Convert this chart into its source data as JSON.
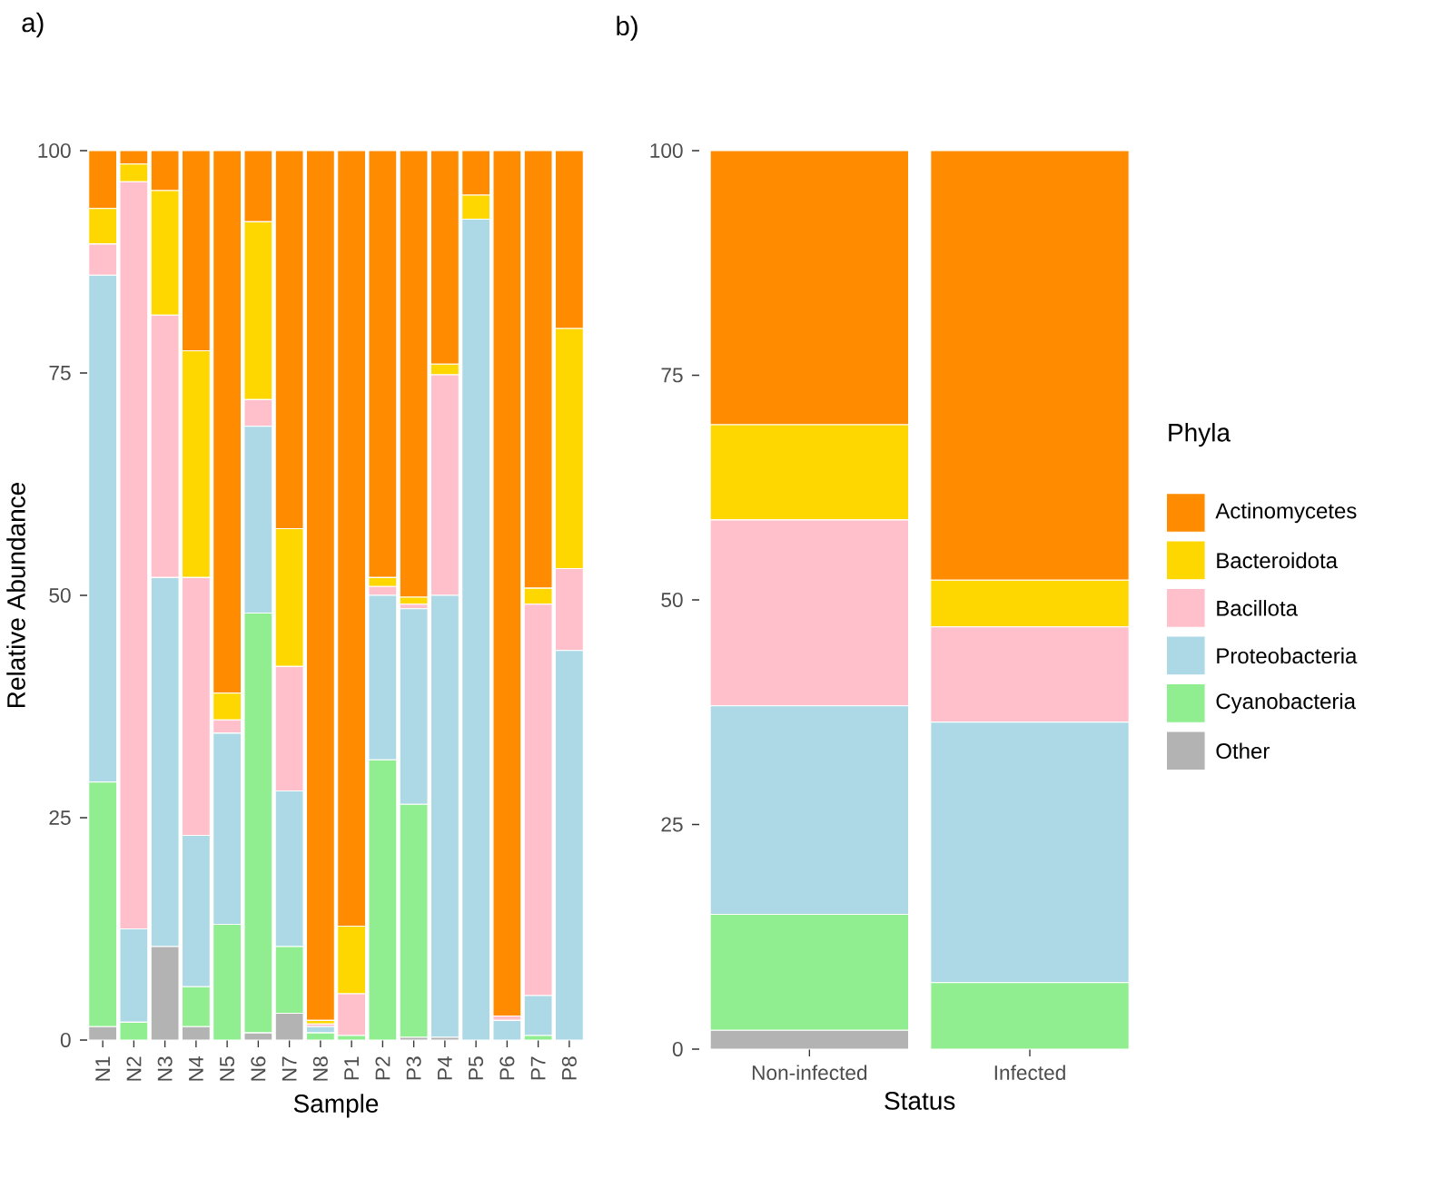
{
  "chart_data": [
    {
      "type": "bar",
      "stacked": true,
      "title": "a)",
      "xlabel": "Sample",
      "ylabel": "Relative Abundance",
      "categories": [
        "N1",
        "N2",
        "N3",
        "N4",
        "N5",
        "N6",
        "N7",
        "N8",
        "P1",
        "P2",
        "P3",
        "P4",
        "P5",
        "P6",
        "P7",
        "P8"
      ],
      "ylim": [
        0,
        100
      ],
      "yticks": [
        0,
        25,
        50,
        75,
        100
      ],
      "legend": false,
      "series": [
        {
          "color": "#b3b3b3",
          "values": [
            1.5,
            0,
            10.5,
            1.5,
            0,
            0.8,
            3,
            0,
            0,
            0,
            0.3,
            0.3,
            0,
            0,
            0,
            0
          ]
        },
        {
          "color": "#90ee90",
          "values": [
            27.5,
            2,
            0,
            4.5,
            13,
            47.2,
            7.5,
            0.8,
            0.5,
            31.5,
            26.2,
            0,
            0,
            0,
            0.5,
            0
          ]
        },
        {
          "color": "#add8e6",
          "values": [
            57,
            10.5,
            41.5,
            17,
            21.5,
            21,
            17.5,
            0.7,
            0,
            18.5,
            22,
            49.7,
            92.3,
            2.2,
            4.5,
            43.8
          ]
        },
        {
          "color": "#ffc0cb",
          "values": [
            3.5,
            84,
            29.5,
            29,
            1.5,
            3,
            14,
            0.3,
            4.7,
            1,
            0.5,
            24.8,
            0,
            0.5,
            44,
            9.2
          ]
        },
        {
          "color": "#ffd700",
          "values": [
            4,
            2,
            14,
            25.5,
            3,
            20,
            15.5,
            0.4,
            7.6,
            1,
            0.8,
            1.2,
            2.7,
            0,
            1.8,
            27
          ]
        },
        {
          "color": "#ff8c00",
          "values": [
            6.5,
            1.5,
            4.5,
            22.5,
            61,
            8,
            42.5,
            97.8,
            87.2,
            48,
            50.2,
            24,
            5,
            97.3,
            49.2,
            20
          ]
        }
      ]
    },
    {
      "type": "bar",
      "stacked": true,
      "title": "b)",
      "xlabel": "Status",
      "legend_title": "Phyla",
      "categories": [
        "Non-infected",
        "Infected"
      ],
      "ylim": [
        0,
        100
      ],
      "yticks": [
        0,
        25,
        50,
        75,
        100
      ],
      "legend": "right",
      "series": [
        {
          "name": "Other",
          "color": "#b3b3b3",
          "values": [
            2.1,
            0
          ]
        },
        {
          "name": "Cyanobacteria",
          "color": "#90ee90",
          "values": [
            12.9,
            7.4
          ]
        },
        {
          "name": "Proteobacteria",
          "color": "#add8e6",
          "values": [
            23.2,
            29
          ]
        },
        {
          "name": "Bacillota",
          "color": "#ffc0cb",
          "values": [
            20.7,
            10.6
          ]
        },
        {
          "name": "Bacteroidota",
          "color": "#ffd700",
          "values": [
            10.6,
            5.2
          ]
        },
        {
          "name": "Actinomycetes",
          "color": "#ff8c00",
          "values": [
            30.5,
            47.8
          ]
        }
      ]
    }
  ]
}
